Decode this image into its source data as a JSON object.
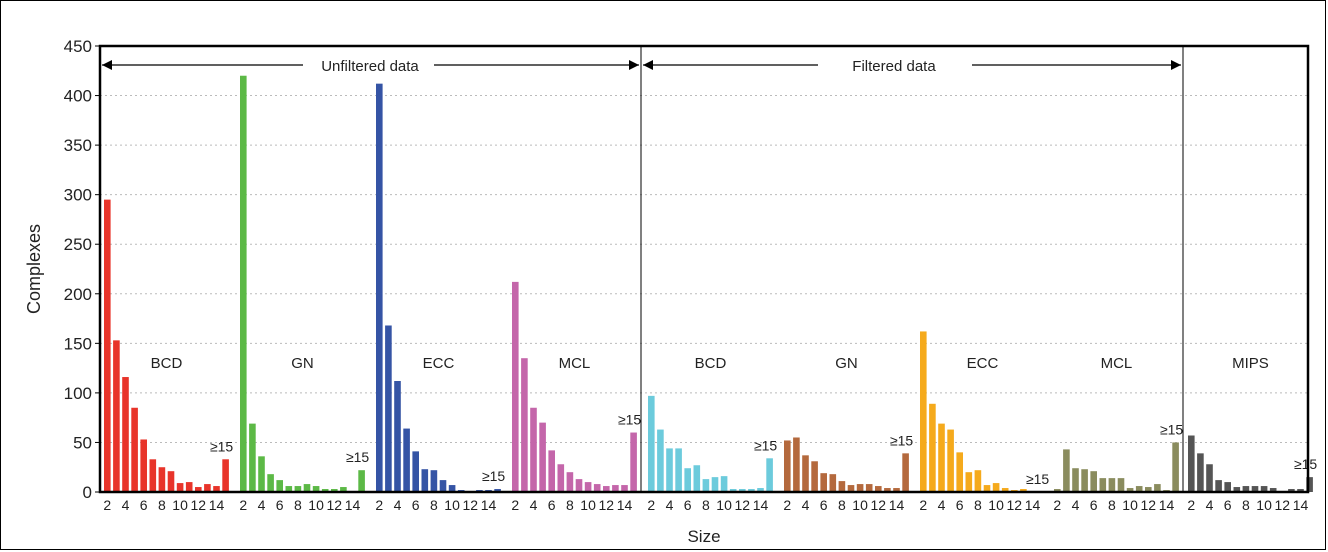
{
  "chart_data": {
    "type": "bar",
    "ylabel": "Complexes",
    "xlabel": "Size",
    "ylim": [
      0,
      450
    ],
    "yticks": [
      0,
      50,
      100,
      150,
      200,
      250,
      300,
      350,
      400,
      450
    ],
    "grid": "horizontal dotted",
    "x_tick_labels": [
      "2",
      "4",
      "6",
      "8",
      "10",
      "12",
      "14"
    ],
    "overflow_label": "≥15",
    "section_labels": {
      "unfiltered": "Unfiltered data",
      "filtered": "Filtered data"
    },
    "groups": [
      {
        "name": "BCD",
        "section": "unfiltered",
        "color": "#e8342a",
        "values": [
          295,
          153,
          116,
          85,
          53,
          33,
          25,
          21,
          9,
          10,
          5,
          8,
          6,
          33
        ]
      },
      {
        "name": "GN",
        "section": "unfiltered",
        "color": "#5cb946",
        "values": [
          420,
          69,
          36,
          18,
          12,
          6,
          6,
          8,
          6,
          3,
          3,
          5,
          0,
          22
        ]
      },
      {
        "name": "ECC",
        "section": "unfiltered",
        "color": "#3554a5",
        "values": [
          412,
          168,
          112,
          64,
          41,
          23,
          22,
          12,
          7,
          2,
          1,
          2,
          2,
          3
        ]
      },
      {
        "name": "MCL",
        "section": "unfiltered",
        "color": "#c466aa",
        "values": [
          212,
          135,
          85,
          70,
          42,
          28,
          20,
          13,
          10,
          8,
          6,
          7,
          7,
          60
        ]
      },
      {
        "name": "BCD",
        "section": "filtered",
        "color": "#6ccbdc",
        "values": [
          97,
          63,
          44,
          44,
          24,
          27,
          13,
          15,
          16,
          3,
          3,
          3,
          4,
          34
        ]
      },
      {
        "name": "GN",
        "section": "filtered",
        "color": "#b4693d",
        "values": [
          52,
          55,
          37,
          31,
          19,
          18,
          11,
          7,
          8,
          8,
          6,
          4,
          4,
          39
        ]
      },
      {
        "name": "ECC",
        "section": "filtered",
        "color": "#f5aa1c",
        "values": [
          162,
          89,
          69,
          63,
          40,
          20,
          22,
          7,
          9,
          4,
          2,
          3,
          1,
          0
        ]
      },
      {
        "name": "MCL",
        "section": "filtered",
        "color": "#8a8c5e",
        "values": [
          3,
          43,
          24,
          23,
          21,
          14,
          14,
          14,
          4,
          6,
          5,
          8,
          2,
          50
        ]
      },
      {
        "name": "MIPS",
        "section": "filtered",
        "color": "#555555",
        "values": [
          57,
          39,
          28,
          12,
          10,
          5,
          6,
          6,
          6,
          4,
          1,
          3,
          3,
          15
        ]
      }
    ]
  }
}
